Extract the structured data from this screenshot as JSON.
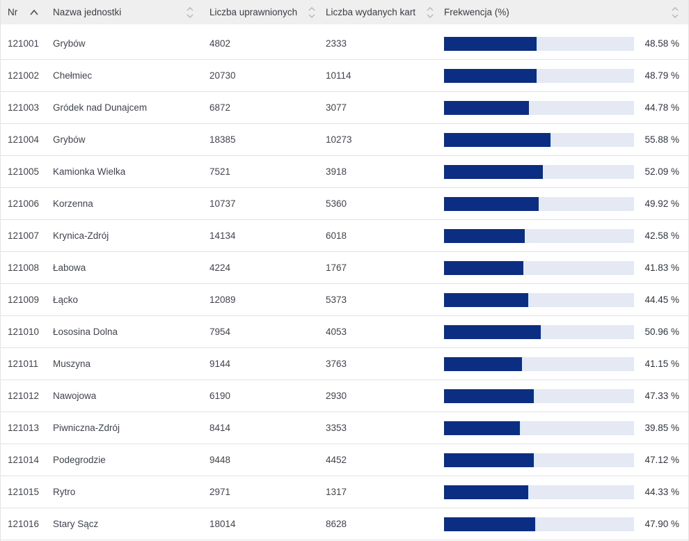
{
  "table": {
    "columns": [
      {
        "key": "nr",
        "label": "Nr",
        "sort_state": "asc"
      },
      {
        "key": "nazwa",
        "label": "Nazwa jednostki",
        "sort_state": "none"
      },
      {
        "key": "uprawnieni",
        "label": "Liczba uprawnionych",
        "sort_state": "none"
      },
      {
        "key": "karty",
        "label": "Liczba wydanych kart",
        "sort_state": "none"
      },
      {
        "key": "frekwencja",
        "label": "Frekwencja (%)",
        "sort_state": "none"
      }
    ],
    "rows": [
      {
        "nr": "121001",
        "nazwa": "Grybów",
        "uprawnieni": "4802",
        "karty": "2333",
        "frekwencja_pct": 48.58,
        "frekwencja_label": "48.58 %"
      },
      {
        "nr": "121002",
        "nazwa": "Chełmiec",
        "uprawnieni": "20730",
        "karty": "10114",
        "frekwencja_pct": 48.79,
        "frekwencja_label": "48.79 %"
      },
      {
        "nr": "121003",
        "nazwa": "Gródek nad Dunajcem",
        "uprawnieni": "6872",
        "karty": "3077",
        "frekwencja_pct": 44.78,
        "frekwencja_label": "44.78 %"
      },
      {
        "nr": "121004",
        "nazwa": "Grybów",
        "uprawnieni": "18385",
        "karty": "10273",
        "frekwencja_pct": 55.88,
        "frekwencja_label": "55.88 %"
      },
      {
        "nr": "121005",
        "nazwa": "Kamionka Wielka",
        "uprawnieni": "7521",
        "karty": "3918",
        "frekwencja_pct": 52.09,
        "frekwencja_label": "52.09 %"
      },
      {
        "nr": "121006",
        "nazwa": "Korzenna",
        "uprawnieni": "10737",
        "karty": "5360",
        "frekwencja_pct": 49.92,
        "frekwencja_label": "49.92 %"
      },
      {
        "nr": "121007",
        "nazwa": "Krynica-Zdrój",
        "uprawnieni": "14134",
        "karty": "6018",
        "frekwencja_pct": 42.58,
        "frekwencja_label": "42.58 %"
      },
      {
        "nr": "121008",
        "nazwa": "Łabowa",
        "uprawnieni": "4224",
        "karty": "1767",
        "frekwencja_pct": 41.83,
        "frekwencja_label": "41.83 %"
      },
      {
        "nr": "121009",
        "nazwa": "Łącko",
        "uprawnieni": "12089",
        "karty": "5373",
        "frekwencja_pct": 44.45,
        "frekwencja_label": "44.45 %"
      },
      {
        "nr": "121010",
        "nazwa": "Łososina Dolna",
        "uprawnieni": "7954",
        "karty": "4053",
        "frekwencja_pct": 50.96,
        "frekwencja_label": "50.96 %"
      },
      {
        "nr": "121011",
        "nazwa": "Muszyna",
        "uprawnieni": "9144",
        "karty": "3763",
        "frekwencja_pct": 41.15,
        "frekwencja_label": "41.15 %"
      },
      {
        "nr": "121012",
        "nazwa": "Nawojowa",
        "uprawnieni": "6190",
        "karty": "2930",
        "frekwencja_pct": 47.33,
        "frekwencja_label": "47.33 %"
      },
      {
        "nr": "121013",
        "nazwa": "Piwniczna-Zdrój",
        "uprawnieni": "8414",
        "karty": "3353",
        "frekwencja_pct": 39.85,
        "frekwencja_label": "39.85 %"
      },
      {
        "nr": "121014",
        "nazwa": "Podegrodzie",
        "uprawnieni": "9448",
        "karty": "4452",
        "frekwencja_pct": 47.12,
        "frekwencja_label": "47.12 %"
      },
      {
        "nr": "121015",
        "nazwa": "Rytro",
        "uprawnieni": "2971",
        "karty": "1317",
        "frekwencja_pct": 44.33,
        "frekwencja_label": "44.33 %"
      },
      {
        "nr": "121016",
        "nazwa": "Stary Sącz",
        "uprawnieni": "18014",
        "karty": "8628",
        "frekwencja_pct": 47.9,
        "frekwencja_label": "47.90 %"
      }
    ]
  },
  "colors": {
    "bar_fill": "#0c2e82",
    "bar_track": "#e4e9f4",
    "header_bg": "#efefef",
    "row_border": "#e2e2e2",
    "text": "#3f444d"
  }
}
